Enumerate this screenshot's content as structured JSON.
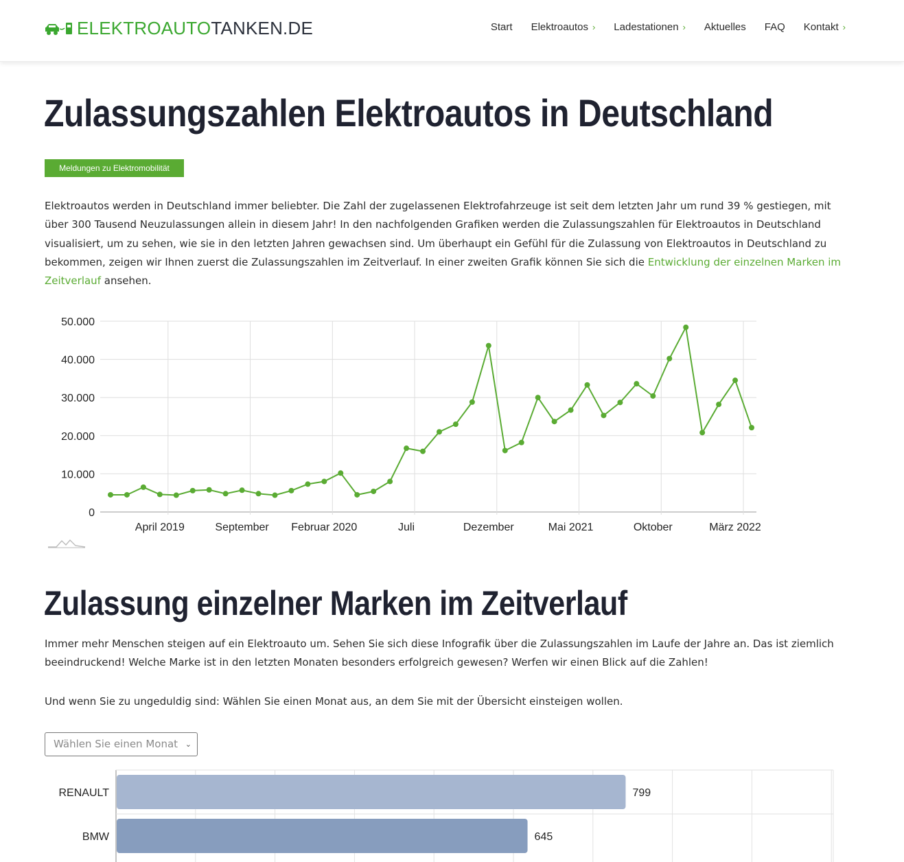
{
  "header": {
    "logo_green": "ELEKTROAUTO",
    "logo_dark": "TANKEN.DE",
    "nav": [
      {
        "label": "Start",
        "has_chevron": false
      },
      {
        "label": "Elektroautos",
        "has_chevron": true
      },
      {
        "label": "Ladestationen",
        "has_chevron": true
      },
      {
        "label": "Aktuelles",
        "has_chevron": false
      },
      {
        "label": "FAQ",
        "has_chevron": false
      },
      {
        "label": "Kontakt",
        "has_chevron": true
      }
    ]
  },
  "main": {
    "title": "Zulassungszahlen Elektroautos in Deutschland",
    "tag": "Meldungen zu Elektromobilität",
    "intro": {
      "text": "Elektroautos werden in Deutschland immer beliebter.  Die Zahl der zugelassenen Elektrofahrzeuge ist seit dem letzten Jahr um rund 39 % gestiegen, mit über 300 Tausend Neuzulassungen allein in diesem Jahr!  In den nachfolgenden Grafiken werden die Zulassungszahlen für Elektroautos in Deutschland visualisiert, um zu sehen, wie sie in den letzten Jahren gewachsen sind. Um überhaupt ein Gefühl für die Zulassung von Elektroautos in Deutschland zu bekommen, zeigen wir Ihnen zuerst die Zulassungszahlen im Zeitverlauf. In einer zweiten Grafik können Sie sich die ",
      "link": "Entwicklung der einzelnen Marken im Zeitverlauf",
      "after": " ansehen."
    },
    "section2_title": "Zulassung einzelner Marken im Zeitverlauf",
    "section2_text": "Immer mehr Menschen steigen auf ein Elektroauto um. Sehen Sie sich diese Infografik über die Zulassungszahlen im Laufe der Jahre an. Das ist ziemlich beeindruckend! Welche Marke ist in den letzten Monaten besonders erfolgreich gewesen? Werfen wir einen Blick auf die Zahlen!",
    "section3_text": "Und wenn Sie zu ungeduldig sind: Wählen Sie einen Monat aus, an dem Sie mit der Übersicht einsteigen wollen.",
    "month_select_placeholder": "Wählen Sie einen Monat"
  },
  "colors": {
    "brand_green": "#5aab33",
    "line": "#5aab33",
    "bar_renault": "#a6b6d0",
    "bar_bmw": "#879dbe"
  },
  "chart_data": [
    {
      "type": "line",
      "title": "",
      "xlabel": "",
      "ylabel": "",
      "ylim": [
        0,
        50000
      ],
      "y_ticks": [
        "0",
        "10.000",
        "20.000",
        "30.000",
        "40.000",
        "50.000"
      ],
      "x_tick_labels": [
        "April 2019",
        "September",
        "Februar 2020",
        "Juli",
        "Dezember",
        "Mai 2021",
        "Oktober",
        "März 2022"
      ],
      "x_tick_indices": [
        3,
        8,
        13,
        18,
        23,
        28,
        33,
        38
      ],
      "grid": true,
      "series": [
        {
          "values": [
            4500,
            4500,
            6500,
            4600,
            4400,
            5600,
            5800,
            4800,
            5700,
            4800,
            4400,
            5600,
            7300,
            8000,
            10200,
            4500,
            5400,
            8000,
            16700,
            15900,
            21000,
            23000,
            28800,
            43600,
            16100,
            18200,
            30000,
            23700,
            26700,
            33300,
            25300,
            28700,
            33600,
            30400,
            40200,
            48400,
            20800,
            28200,
            34500,
            22100
          ]
        }
      ]
    },
    {
      "type": "bar",
      "orientation": "horizontal",
      "categories": [
        "RENAULT",
        "BMW"
      ],
      "values": [
        799,
        645
      ],
      "xlim": [
        0,
        1000
      ],
      "grid": true
    }
  ]
}
